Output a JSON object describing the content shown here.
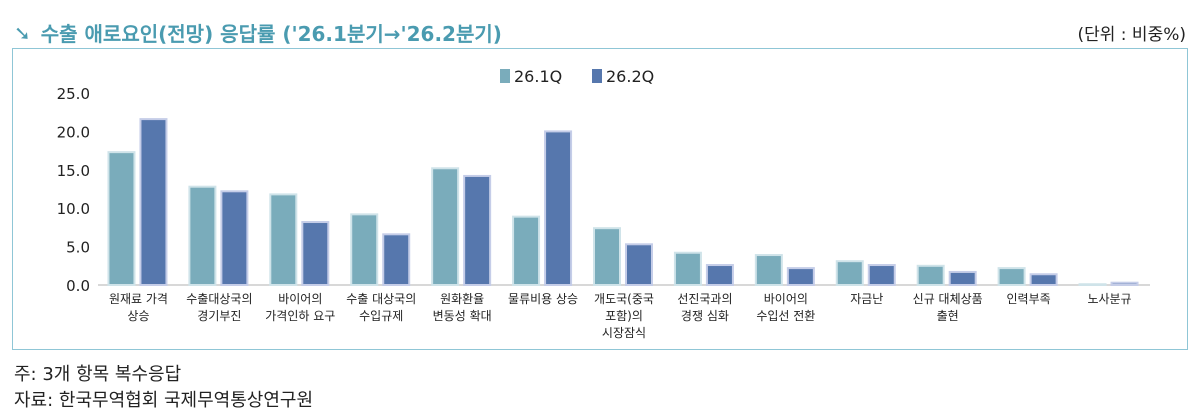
{
  "title": "수출 애로요인(전망) 응답률 ('26.1분기→'26.2분기)",
  "unit": "(단위 : 비중%)",
  "notes": [
    "주: 3개 항목 복수응답",
    "자료: 한국무역협회 국제무역통상연구원"
  ],
  "colors": {
    "s1": "#7aacbb",
    "s2": "#5677ad",
    "title": "#4a9bb0"
  },
  "chart_data": {
    "type": "bar",
    "title": "수출 애로요인(전망) 응답률 ('26.1분기→'26.2분기)",
    "ylim": [
      0,
      25
    ],
    "yticks": [
      "0.0",
      "5.0",
      "10.0",
      "15.0",
      "20.0",
      "25.0"
    ],
    "legend_position": "top-center",
    "categories": [
      [
        "원재료 가격",
        "상승"
      ],
      [
        "수출대상국의",
        "경기부진"
      ],
      [
        "바이어의",
        "가격인하 요구"
      ],
      [
        "수출 대상국의",
        "수입규제"
      ],
      [
        "원화환율",
        "변동성 확대"
      ],
      [
        "물류비용 상승"
      ],
      [
        "개도국(중국",
        "포함)의",
        "시장잠식"
      ],
      [
        "선진국과의",
        "경쟁 심화"
      ],
      [
        "바이어의",
        "수입선 전환"
      ],
      [
        "자금난"
      ],
      [
        "신규 대체상품",
        "출현"
      ],
      [
        "인력부족"
      ],
      [
        "노사분규"
      ]
    ],
    "series": [
      {
        "name": "26.1Q",
        "values": [
          17.3,
          12.8,
          11.8,
          9.2,
          15.2,
          8.9,
          7.4,
          4.2,
          3.9,
          3.1,
          2.5,
          2.2,
          0.1
        ]
      },
      {
        "name": "26.2Q",
        "values": [
          21.6,
          12.2,
          8.2,
          6.6,
          14.2,
          20.0,
          5.3,
          2.6,
          2.2,
          2.6,
          1.7,
          1.4,
          0.3
        ]
      }
    ]
  }
}
